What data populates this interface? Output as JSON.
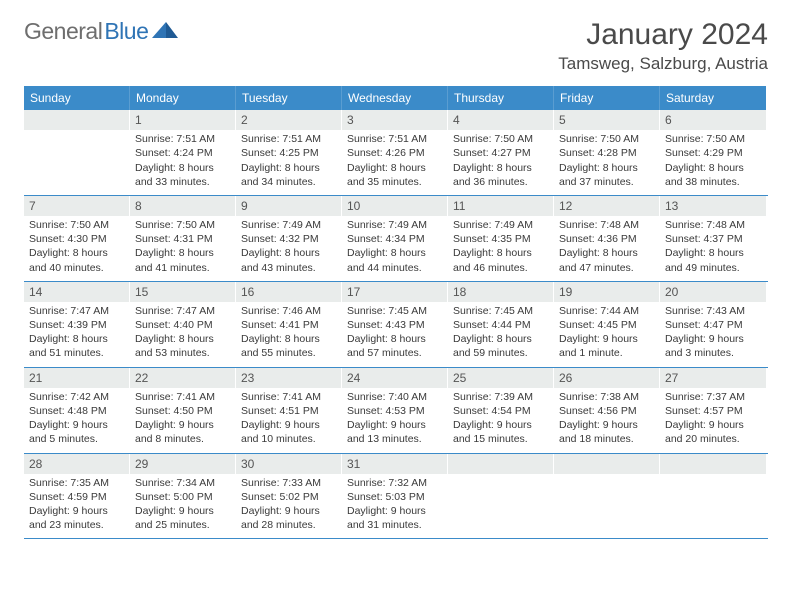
{
  "logo": {
    "part1": "General",
    "part2": "Blue"
  },
  "title": "January 2024",
  "location": "Tamsweg, Salzburg, Austria",
  "colors": {
    "header_bg": "#3b8bc9",
    "header_text": "#ffffff",
    "daynum_bg": "#e9eceb",
    "border": "#3b8bc9",
    "logo_gray": "#6e6e6e",
    "logo_blue": "#2f74b5"
  },
  "dow": [
    "Sunday",
    "Monday",
    "Tuesday",
    "Wednesday",
    "Thursday",
    "Friday",
    "Saturday"
  ],
  "weeks": [
    [
      {
        "n": "",
        "sr": "",
        "ss": "",
        "dl": ""
      },
      {
        "n": "1",
        "sr": "Sunrise: 7:51 AM",
        "ss": "Sunset: 4:24 PM",
        "dl": "Daylight: 8 hours and 33 minutes."
      },
      {
        "n": "2",
        "sr": "Sunrise: 7:51 AM",
        "ss": "Sunset: 4:25 PM",
        "dl": "Daylight: 8 hours and 34 minutes."
      },
      {
        "n": "3",
        "sr": "Sunrise: 7:51 AM",
        "ss": "Sunset: 4:26 PM",
        "dl": "Daylight: 8 hours and 35 minutes."
      },
      {
        "n": "4",
        "sr": "Sunrise: 7:50 AM",
        "ss": "Sunset: 4:27 PM",
        "dl": "Daylight: 8 hours and 36 minutes."
      },
      {
        "n": "5",
        "sr": "Sunrise: 7:50 AM",
        "ss": "Sunset: 4:28 PM",
        "dl": "Daylight: 8 hours and 37 minutes."
      },
      {
        "n": "6",
        "sr": "Sunrise: 7:50 AM",
        "ss": "Sunset: 4:29 PM",
        "dl": "Daylight: 8 hours and 38 minutes."
      }
    ],
    [
      {
        "n": "7",
        "sr": "Sunrise: 7:50 AM",
        "ss": "Sunset: 4:30 PM",
        "dl": "Daylight: 8 hours and 40 minutes."
      },
      {
        "n": "8",
        "sr": "Sunrise: 7:50 AM",
        "ss": "Sunset: 4:31 PM",
        "dl": "Daylight: 8 hours and 41 minutes."
      },
      {
        "n": "9",
        "sr": "Sunrise: 7:49 AM",
        "ss": "Sunset: 4:32 PM",
        "dl": "Daylight: 8 hours and 43 minutes."
      },
      {
        "n": "10",
        "sr": "Sunrise: 7:49 AM",
        "ss": "Sunset: 4:34 PM",
        "dl": "Daylight: 8 hours and 44 minutes."
      },
      {
        "n": "11",
        "sr": "Sunrise: 7:49 AM",
        "ss": "Sunset: 4:35 PM",
        "dl": "Daylight: 8 hours and 46 minutes."
      },
      {
        "n": "12",
        "sr": "Sunrise: 7:48 AM",
        "ss": "Sunset: 4:36 PM",
        "dl": "Daylight: 8 hours and 47 minutes."
      },
      {
        "n": "13",
        "sr": "Sunrise: 7:48 AM",
        "ss": "Sunset: 4:37 PM",
        "dl": "Daylight: 8 hours and 49 minutes."
      }
    ],
    [
      {
        "n": "14",
        "sr": "Sunrise: 7:47 AM",
        "ss": "Sunset: 4:39 PM",
        "dl": "Daylight: 8 hours and 51 minutes."
      },
      {
        "n": "15",
        "sr": "Sunrise: 7:47 AM",
        "ss": "Sunset: 4:40 PM",
        "dl": "Daylight: 8 hours and 53 minutes."
      },
      {
        "n": "16",
        "sr": "Sunrise: 7:46 AM",
        "ss": "Sunset: 4:41 PM",
        "dl": "Daylight: 8 hours and 55 minutes."
      },
      {
        "n": "17",
        "sr": "Sunrise: 7:45 AM",
        "ss": "Sunset: 4:43 PM",
        "dl": "Daylight: 8 hours and 57 minutes."
      },
      {
        "n": "18",
        "sr": "Sunrise: 7:45 AM",
        "ss": "Sunset: 4:44 PM",
        "dl": "Daylight: 8 hours and 59 minutes."
      },
      {
        "n": "19",
        "sr": "Sunrise: 7:44 AM",
        "ss": "Sunset: 4:45 PM",
        "dl": "Daylight: 9 hours and 1 minute."
      },
      {
        "n": "20",
        "sr": "Sunrise: 7:43 AM",
        "ss": "Sunset: 4:47 PM",
        "dl": "Daylight: 9 hours and 3 minutes."
      }
    ],
    [
      {
        "n": "21",
        "sr": "Sunrise: 7:42 AM",
        "ss": "Sunset: 4:48 PM",
        "dl": "Daylight: 9 hours and 5 minutes."
      },
      {
        "n": "22",
        "sr": "Sunrise: 7:41 AM",
        "ss": "Sunset: 4:50 PM",
        "dl": "Daylight: 9 hours and 8 minutes."
      },
      {
        "n": "23",
        "sr": "Sunrise: 7:41 AM",
        "ss": "Sunset: 4:51 PM",
        "dl": "Daylight: 9 hours and 10 minutes."
      },
      {
        "n": "24",
        "sr": "Sunrise: 7:40 AM",
        "ss": "Sunset: 4:53 PM",
        "dl": "Daylight: 9 hours and 13 minutes."
      },
      {
        "n": "25",
        "sr": "Sunrise: 7:39 AM",
        "ss": "Sunset: 4:54 PM",
        "dl": "Daylight: 9 hours and 15 minutes."
      },
      {
        "n": "26",
        "sr": "Sunrise: 7:38 AM",
        "ss": "Sunset: 4:56 PM",
        "dl": "Daylight: 9 hours and 18 minutes."
      },
      {
        "n": "27",
        "sr": "Sunrise: 7:37 AM",
        "ss": "Sunset: 4:57 PM",
        "dl": "Daylight: 9 hours and 20 minutes."
      }
    ],
    [
      {
        "n": "28",
        "sr": "Sunrise: 7:35 AM",
        "ss": "Sunset: 4:59 PM",
        "dl": "Daylight: 9 hours and 23 minutes."
      },
      {
        "n": "29",
        "sr": "Sunrise: 7:34 AM",
        "ss": "Sunset: 5:00 PM",
        "dl": "Daylight: 9 hours and 25 minutes."
      },
      {
        "n": "30",
        "sr": "Sunrise: 7:33 AM",
        "ss": "Sunset: 5:02 PM",
        "dl": "Daylight: 9 hours and 28 minutes."
      },
      {
        "n": "31",
        "sr": "Sunrise: 7:32 AM",
        "ss": "Sunset: 5:03 PM",
        "dl": "Daylight: 9 hours and 31 minutes."
      },
      {
        "n": "",
        "sr": "",
        "ss": "",
        "dl": ""
      },
      {
        "n": "",
        "sr": "",
        "ss": "",
        "dl": ""
      },
      {
        "n": "",
        "sr": "",
        "ss": "",
        "dl": ""
      }
    ]
  ]
}
